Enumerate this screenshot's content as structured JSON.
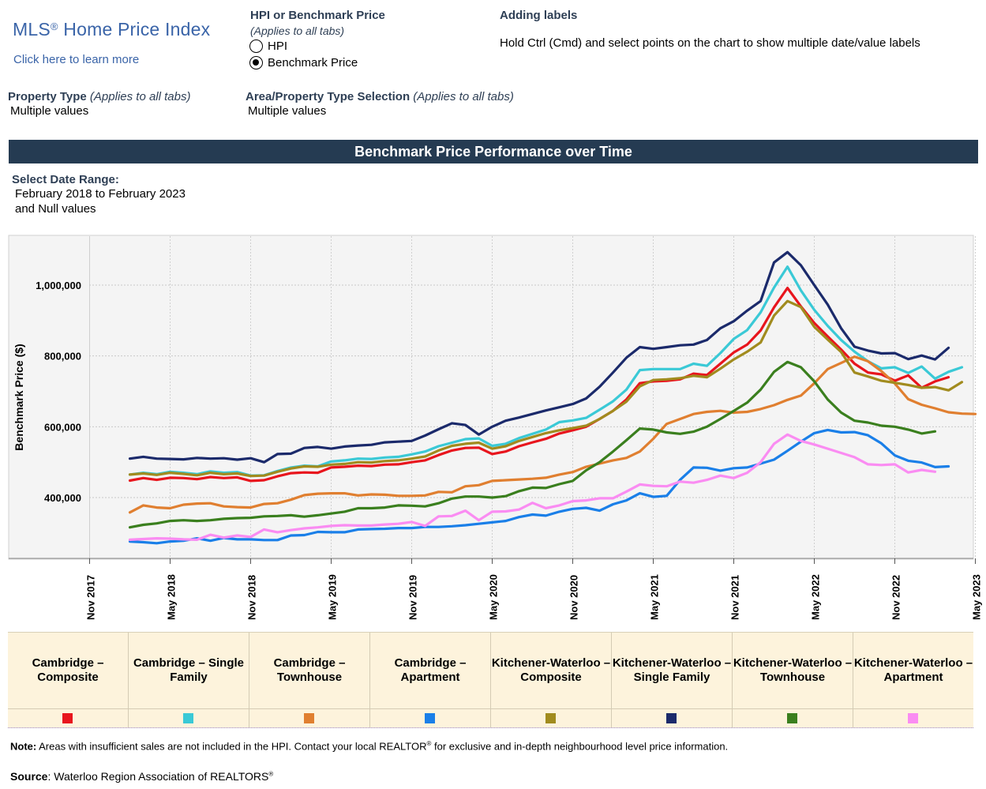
{
  "header": {
    "brand": "MLS",
    "brand_mark": "®",
    "brand_rest": " Home Price Index",
    "learn_link": "Click here to learn more",
    "hpi_title": "HPI or Benchmark Price",
    "hpi_subtitle": "(Applies to all tabs)",
    "radio_options": [
      {
        "label": "HPI",
        "selected": false
      },
      {
        "label": "Benchmark Price",
        "selected": true
      }
    ],
    "labels_title": "Adding labels",
    "labels_text": "Hold Ctrl (Cmd) and select points on the chart to show multiple date/value labels"
  },
  "filters": {
    "property_type_label": "Property Type",
    "property_type_note": "(Applies to all tabs)",
    "property_type_value": "Multiple values",
    "area_label": "Area/Property Type Selection",
    "area_note": "(Applies to all tabs)",
    "area_value": "Multiple values"
  },
  "banner": "Benchmark Price Performance over Time",
  "date_range": {
    "label": "Select Date Range:",
    "value_line1": "February 2018 to February 2023",
    "value_line2": "and Null values"
  },
  "chart_data": {
    "type": "line",
    "ylabel": "Benchmark Price ($)",
    "xlabel": "",
    "ylim": [
      230000,
      1130000
    ],
    "yticks": [
      400000,
      600000,
      800000,
      1000000
    ],
    "ytick_labels": [
      "400,000",
      "600,000",
      "800,000",
      "1,000,000"
    ],
    "xtick_labels": [
      "Nov 2017",
      "May 2018",
      "Nov 2018",
      "May 2019",
      "Nov 2019",
      "May 2020",
      "Nov 2020",
      "May 2021",
      "Nov 2021",
      "May 2022",
      "Nov 2022",
      "May 2023"
    ],
    "xticks_month_index": [
      -3,
      3,
      9,
      15,
      21,
      27,
      33,
      39,
      45,
      51,
      57,
      63
    ],
    "x_start": "2018-02",
    "x_end": "2023-02",
    "grid": true,
    "series": [
      {
        "name": "Cambridge – Composite",
        "color": "#e8151d",
        "values": [
          448000,
          455000,
          450000,
          456000,
          455000,
          452000,
          458000,
          455000,
          457000,
          447000,
          449000,
          460000,
          469000,
          471000,
          470000,
          485000,
          487000,
          490000,
          489000,
          493000,
          494000,
          500000,
          505000,
          520000,
          533000,
          540000,
          541000,
          523000,
          530000,
          545000,
          556000,
          566000,
          581000,
          590000,
          600000,
          622000,
          645000,
          677000,
          723000,
          728000,
          730000,
          734000,
          750000,
          746000,
          778000,
          810000,
          832000,
          872000,
          937000,
          992000,
          940000,
          893000,
          855000,
          818000,
          778000,
          753000,
          748000,
          730000,
          745000,
          710000,
          728000,
          740000
        ]
      },
      {
        "name": "Cambridge – Single Family",
        "color": "#3ac9d6",
        "values": [
          465000,
          470000,
          466000,
          473000,
          470000,
          466000,
          474000,
          470000,
          472000,
          462000,
          463000,
          475000,
          485000,
          490000,
          488000,
          502000,
          505000,
          510000,
          509000,
          513000,
          515000,
          522000,
          530000,
          545000,
          555000,
          565000,
          567000,
          546000,
          552000,
          568000,
          580000,
          592000,
          613000,
          618000,
          625000,
          648000,
          672000,
          705000,
          760000,
          763000,
          763000,
          763000,
          778000,
          772000,
          808000,
          848000,
          873000,
          923000,
          993000,
          1052000,
          985000,
          930000,
          885000,
          845000,
          812000,
          785000,
          765000,
          768000,
          752000,
          770000,
          736000,
          755000,
          768000
        ]
      },
      {
        "name": "Cambridge – Townhouse",
        "color": "#e07f30",
        "values": [
          358000,
          378000,
          372000,
          370000,
          380000,
          383000,
          384000,
          375000,
          373000,
          372000,
          382000,
          384000,
          394000,
          407000,
          411000,
          412000,
          412000,
          406000,
          409000,
          408000,
          405000,
          405000,
          406000,
          416000,
          415000,
          432000,
          435000,
          447000,
          449000,
          451000,
          453000,
          456000,
          465000,
          472000,
          487000,
          496000,
          505000,
          512000,
          530000,
          566000,
          608000,
          622000,
          636000,
          642000,
          645000,
          640000,
          642000,
          650000,
          661000,
          676000,
          688000,
          723000,
          763000,
          780000,
          798000,
          785000,
          757000,
          722000,
          678000,
          662000,
          652000,
          641000,
          637000,
          636000
        ]
      },
      {
        "name": "Cambridge – Apartment",
        "color": "#1a7fe8",
        "values": [
          276000,
          274000,
          271000,
          276000,
          278000,
          285000,
          278000,
          286000,
          282000,
          282000,
          280000,
          280000,
          293000,
          294000,
          303000,
          302000,
          302000,
          310000,
          311000,
          312000,
          314000,
          314000,
          317000,
          317000,
          319000,
          322000,
          326000,
          330000,
          334000,
          345000,
          352000,
          349000,
          360000,
          368000,
          371000,
          363000,
          381000,
          392000,
          412000,
          402000,
          405000,
          450000,
          485000,
          484000,
          476000,
          483000,
          485000,
          496000,
          507000,
          532000,
          558000,
          582000,
          591000,
          584000,
          585000,
          576000,
          553000,
          519000,
          504000,
          499000,
          486000,
          488000
        ]
      },
      {
        "name": "Kitchener-Waterloo – Composite",
        "color": "#a18b1e",
        "values": [
          465000,
          468000,
          464000,
          470000,
          467000,
          463000,
          470000,
          466000,
          468000,
          461000,
          462000,
          473000,
          482000,
          488000,
          487000,
          493000,
          495000,
          500000,
          499000,
          503000,
          505000,
          510000,
          516000,
          533000,
          546000,
          552000,
          555000,
          538000,
          545000,
          560000,
          571000,
          582000,
          590000,
          596000,
          603000,
          622000,
          645000,
          671000,
          714000,
          732000,
          734000,
          737000,
          744000,
          740000,
          764000,
          790000,
          812000,
          838000,
          914000,
          955000,
          938000,
          882000,
          846000,
          811000,
          753000,
          742000,
          730000,
          724000,
          718000,
          710000,
          712000,
          703000,
          726000
        ]
      },
      {
        "name": "Kitchener-Waterloo – Single Family",
        "color": "#1b2a6b",
        "values": [
          510000,
          515000,
          510000,
          509000,
          508000,
          512000,
          510000,
          511000,
          507000,
          511000,
          500000,
          523000,
          524000,
          540000,
          543000,
          538000,
          544000,
          547000,
          549000,
          556000,
          558000,
          560000,
          575000,
          593000,
          610000,
          605000,
          578000,
          600000,
          617000,
          626000,
          636000,
          646000,
          655000,
          664000,
          680000,
          713000,
          753000,
          795000,
          825000,
          820000,
          825000,
          830000,
          832000,
          845000,
          878000,
          898000,
          928000,
          955000,
          1064000,
          1093000,
          1056000,
          1000000,
          945000,
          878000,
          826000,
          815000,
          807000,
          808000,
          791000,
          801000,
          790000,
          823000
        ]
      },
      {
        "name": "Kitchener-Waterloo – Townhouse",
        "color": "#3a7f1e",
        "values": [
          316000,
          323000,
          327000,
          334000,
          336000,
          334000,
          336000,
          340000,
          342000,
          343000,
          347000,
          348000,
          350000,
          346000,
          350000,
          355000,
          360000,
          370000,
          370000,
          372000,
          378000,
          377000,
          375000,
          384000,
          397000,
          403000,
          403000,
          400000,
          404000,
          418000,
          428000,
          427000,
          438000,
          447000,
          477000,
          500000,
          530000,
          562000,
          595000,
          592000,
          584000,
          580000,
          586000,
          600000,
          622000,
          645000,
          668000,
          705000,
          755000,
          783000,
          768000,
          728000,
          677000,
          640000,
          617000,
          612000,
          603000,
          600000,
          592000,
          581000,
          587000
        ]
      },
      {
        "name": "Kitchener-Waterloo – Apartment",
        "color": "#fa8cf2",
        "values": [
          281000,
          283000,
          285000,
          284000,
          282000,
          281000,
          295000,
          287000,
          293000,
          289000,
          310000,
          302000,
          308000,
          313000,
          316000,
          320000,
          322000,
          321000,
          321000,
          324000,
          326000,
          331000,
          320000,
          347000,
          348000,
          363000,
          336000,
          360000,
          361000,
          366000,
          385000,
          370000,
          378000,
          390000,
          392000,
          398000,
          398000,
          417000,
          437000,
          433000,
          432000,
          445000,
          442000,
          450000,
          462000,
          455000,
          470000,
          500000,
          552000,
          578000,
          560000,
          550000,
          538000,
          526000,
          514000,
          494000,
          492000,
          494000,
          471000,
          478000,
          473000
        ]
      }
    ]
  },
  "legend": {
    "items": [
      {
        "label": "Cambridge – Composite",
        "color": "#e8151d"
      },
      {
        "label": "Cambridge – Single Family",
        "color": "#3ac9d6"
      },
      {
        "label": "Cambridge – Townhouse",
        "color": "#e07f30"
      },
      {
        "label": "Cambridge – Apartment",
        "color": "#1a7fe8"
      },
      {
        "label": "Kitchener-Waterloo – Composite",
        "color": "#a18b1e"
      },
      {
        "label": "Kitchener-Waterloo – Single Family",
        "color": "#1b2a6b"
      },
      {
        "label": "Kitchener-Waterloo – Townhouse",
        "color": "#3a7f1e"
      },
      {
        "label": "Kitchener-Waterloo – Apartment",
        "color": "#fa8cf2"
      }
    ]
  },
  "footer": {
    "note_bold": "Note:",
    "note_text": " Areas with insufficient sales are not included in the HPI. Contact your local REALTOR",
    "note_mark": "®",
    "note_text2": " for exclusive and in-depth neighbourhood level price information.",
    "source_bold": "Source",
    "source_text": ": Waterloo Region Association of REALTORS",
    "source_mark": "®"
  }
}
